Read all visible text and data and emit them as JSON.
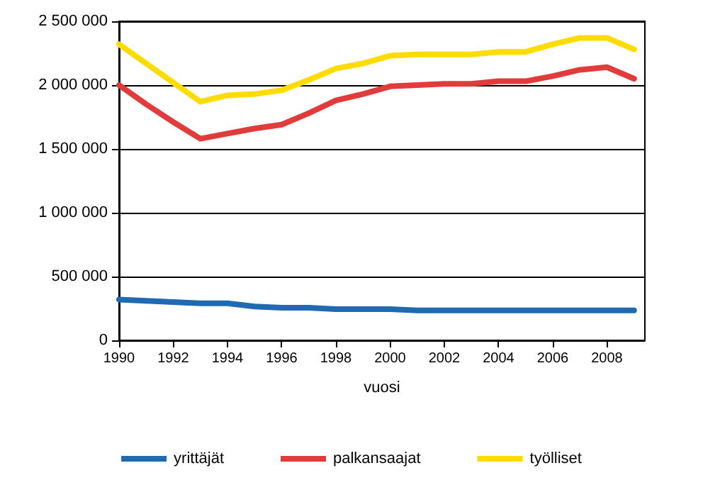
{
  "chart_data": {
    "type": "line",
    "xlabel": "vuosi",
    "x": [
      1990,
      1991,
      1992,
      1993,
      1994,
      1995,
      1996,
      1997,
      1998,
      1999,
      2000,
      2001,
      2002,
      2003,
      2004,
      2005,
      2006,
      2007,
      2008,
      2009
    ],
    "series": [
      {
        "name": "yrittäjät",
        "color": "#1f6ab0",
        "values": [
          320000,
          310000,
          300000,
          290000,
          290000,
          265000,
          255000,
          255000,
          245000,
          245000,
          245000,
          235000,
          235000,
          235000,
          235000,
          235000,
          235000,
          235000,
          235000,
          235000
        ]
      },
      {
        "name": "palkansaajat",
        "color": "#e03c3c",
        "values": [
          2000000,
          1850000,
          1710000,
          1580000,
          1620000,
          1660000,
          1690000,
          1780000,
          1880000,
          1930000,
          1990000,
          2000000,
          2010000,
          2010000,
          2030000,
          2030000,
          2070000,
          2120000,
          2140000,
          2050000
        ]
      },
      {
        "name": "työlliset",
        "color": "#ffdc00",
        "values": [
          2320000,
          2170000,
          2020000,
          1870000,
          1920000,
          1930000,
          1960000,
          2040000,
          2130000,
          2170000,
          2230000,
          2240000,
          2240000,
          2240000,
          2260000,
          2260000,
          2320000,
          2370000,
          2370000,
          2280000
        ]
      }
    ],
    "xlim": [
      1990,
      2009.4
    ],
    "xticks": [
      1990,
      1992,
      1994,
      1996,
      1998,
      2000,
      2002,
      2004,
      2006,
      2008
    ],
    "ylim": [
      0,
      2500000
    ],
    "yticks": [
      {
        "value": 0,
        "label": "0"
      },
      {
        "value": 500000,
        "label": "500 000"
      },
      {
        "value": 1000000,
        "label": "1 000 000"
      },
      {
        "value": 1500000,
        "label": "1 500 000"
      },
      {
        "value": 2000000,
        "label": "2 000 000"
      },
      {
        "value": 2500000,
        "label": "2 500 000"
      }
    ],
    "grid": "y",
    "legend": "bottom",
    "marker": "none",
    "line_style": "solid"
  }
}
